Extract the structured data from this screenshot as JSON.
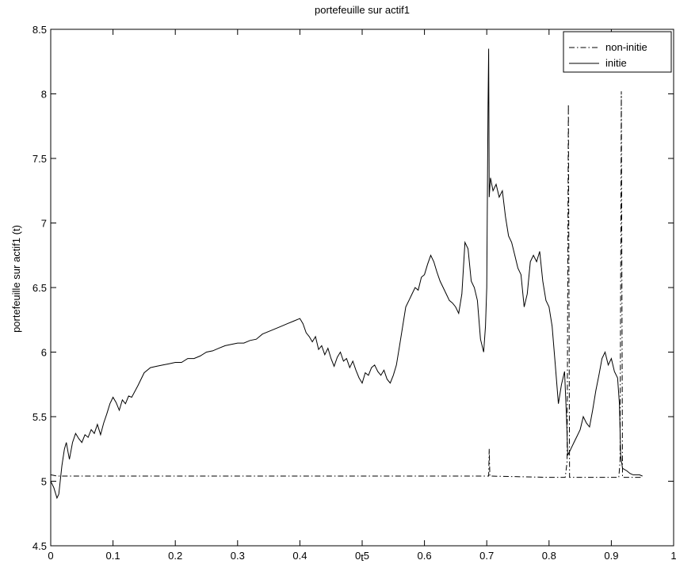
{
  "chart_data": {
    "type": "line",
    "title": "portefeuille sur actif1",
    "xlabel": "t",
    "ylabel": "portefeuille sur actif1 (t)",
    "xlim": [
      0,
      1
    ],
    "ylim": [
      4.5,
      8.5
    ],
    "x_ticks": [
      "0",
      "0.1",
      "0.2",
      "0.3",
      "0.4",
      "0.5",
      "0.6",
      "0.7",
      "0.8",
      "0.9",
      "1"
    ],
    "y_ticks": [
      "4.5",
      "5",
      "5.5",
      "6",
      "6.5",
      "7",
      "7.5",
      "8",
      "8.5"
    ],
    "grid": false,
    "legend_position": "top-right",
    "series": [
      {
        "name": "non-initie",
        "style": "dash-dot",
        "color": "#000000",
        "points": [
          [
            0.0,
            5.05
          ],
          [
            0.01,
            5.04
          ],
          [
            0.1,
            5.04
          ],
          [
            0.2,
            5.04
          ],
          [
            0.3,
            5.04
          ],
          [
            0.4,
            5.04
          ],
          [
            0.5,
            5.04
          ],
          [
            0.6,
            5.04
          ],
          [
            0.7,
            5.04
          ],
          [
            0.703,
            5.04
          ],
          [
            0.704,
            5.25
          ],
          [
            0.705,
            5.04
          ],
          [
            0.8,
            5.03
          ],
          [
            0.826,
            5.03
          ],
          [
            0.829,
            5.15
          ],
          [
            0.831,
            7.92
          ],
          [
            0.833,
            5.03
          ],
          [
            0.9,
            5.03
          ],
          [
            0.912,
            5.03
          ],
          [
            0.914,
            5.15
          ],
          [
            0.916,
            8.02
          ],
          [
            0.918,
            5.03
          ],
          [
            0.94,
            5.03
          ],
          [
            0.95,
            5.03
          ]
        ]
      },
      {
        "name": "initie",
        "style": "solid",
        "color": "#000000",
        "points": [
          [
            0.0,
            5.0
          ],
          [
            0.005,
            4.95
          ],
          [
            0.01,
            4.87
          ],
          [
            0.013,
            4.9
          ],
          [
            0.018,
            5.12
          ],
          [
            0.022,
            5.25
          ],
          [
            0.025,
            5.3
          ],
          [
            0.028,
            5.22
          ],
          [
            0.03,
            5.17
          ],
          [
            0.035,
            5.3
          ],
          [
            0.04,
            5.37
          ],
          [
            0.045,
            5.33
          ],
          [
            0.05,
            5.3
          ],
          [
            0.055,
            5.36
          ],
          [
            0.06,
            5.34
          ],
          [
            0.065,
            5.4
          ],
          [
            0.07,
            5.37
          ],
          [
            0.075,
            5.44
          ],
          [
            0.08,
            5.36
          ],
          [
            0.085,
            5.45
          ],
          [
            0.09,
            5.52
          ],
          [
            0.095,
            5.6
          ],
          [
            0.1,
            5.65
          ],
          [
            0.105,
            5.61
          ],
          [
            0.11,
            5.55
          ],
          [
            0.115,
            5.63
          ],
          [
            0.12,
            5.6
          ],
          [
            0.125,
            5.66
          ],
          [
            0.13,
            5.65
          ],
          [
            0.14,
            5.74
          ],
          [
            0.15,
            5.84
          ],
          [
            0.16,
            5.88
          ],
          [
            0.17,
            5.89
          ],
          [
            0.18,
            5.9
          ],
          [
            0.19,
            5.91
          ],
          [
            0.2,
            5.92
          ],
          [
            0.21,
            5.92
          ],
          [
            0.22,
            5.95
          ],
          [
            0.23,
            5.95
          ],
          [
            0.24,
            5.97
          ],
          [
            0.25,
            6.0
          ],
          [
            0.26,
            6.01
          ],
          [
            0.27,
            6.03
          ],
          [
            0.28,
            6.05
          ],
          [
            0.29,
            6.06
          ],
          [
            0.3,
            6.07
          ],
          [
            0.31,
            6.07
          ],
          [
            0.32,
            6.09
          ],
          [
            0.33,
            6.1
          ],
          [
            0.34,
            6.14
          ],
          [
            0.35,
            6.16
          ],
          [
            0.36,
            6.18
          ],
          [
            0.37,
            6.2
          ],
          [
            0.38,
            6.22
          ],
          [
            0.39,
            6.24
          ],
          [
            0.4,
            6.26
          ],
          [
            0.405,
            6.22
          ],
          [
            0.41,
            6.15
          ],
          [
            0.415,
            6.12
          ],
          [
            0.42,
            6.08
          ],
          [
            0.425,
            6.12
          ],
          [
            0.43,
            6.02
          ],
          [
            0.435,
            6.05
          ],
          [
            0.44,
            5.98
          ],
          [
            0.445,
            6.03
          ],
          [
            0.45,
            5.95
          ],
          [
            0.455,
            5.89
          ],
          [
            0.46,
            5.96
          ],
          [
            0.465,
            6.0
          ],
          [
            0.47,
            5.93
          ],
          [
            0.475,
            5.95
          ],
          [
            0.48,
            5.88
          ],
          [
            0.485,
            5.93
          ],
          [
            0.49,
            5.86
          ],
          [
            0.495,
            5.8
          ],
          [
            0.5,
            5.76
          ],
          [
            0.505,
            5.84
          ],
          [
            0.51,
            5.82
          ],
          [
            0.515,
            5.88
          ],
          [
            0.52,
            5.9
          ],
          [
            0.525,
            5.85
          ],
          [
            0.53,
            5.82
          ],
          [
            0.535,
            5.86
          ],
          [
            0.54,
            5.79
          ],
          [
            0.545,
            5.76
          ],
          [
            0.55,
            5.82
          ],
          [
            0.555,
            5.9
          ],
          [
            0.56,
            6.05
          ],
          [
            0.565,
            6.2
          ],
          [
            0.57,
            6.35
          ],
          [
            0.575,
            6.4
          ],
          [
            0.58,
            6.45
          ],
          [
            0.585,
            6.5
          ],
          [
            0.59,
            6.48
          ],
          [
            0.595,
            6.58
          ],
          [
            0.6,
            6.6
          ],
          [
            0.605,
            6.68
          ],
          [
            0.61,
            6.75
          ],
          [
            0.615,
            6.7
          ],
          [
            0.62,
            6.62
          ],
          [
            0.625,
            6.55
          ],
          [
            0.63,
            6.5
          ],
          [
            0.635,
            6.45
          ],
          [
            0.64,
            6.4
          ],
          [
            0.645,
            6.38
          ],
          [
            0.65,
            6.35
          ],
          [
            0.655,
            6.3
          ],
          [
            0.66,
            6.45
          ],
          [
            0.665,
            6.85
          ],
          [
            0.67,
            6.8
          ],
          [
            0.675,
            6.55
          ],
          [
            0.68,
            6.5
          ],
          [
            0.685,
            6.4
          ],
          [
            0.69,
            6.1
          ],
          [
            0.695,
            6.0
          ],
          [
            0.698,
            6.2
          ],
          [
            0.7,
            6.5
          ],
          [
            0.702,
            7.9
          ],
          [
            0.703,
            8.35
          ],
          [
            0.704,
            7.2
          ],
          [
            0.706,
            7.35
          ],
          [
            0.71,
            7.25
          ],
          [
            0.715,
            7.3
          ],
          [
            0.72,
            7.2
          ],
          [
            0.725,
            7.25
          ],
          [
            0.73,
            7.05
          ],
          [
            0.735,
            6.9
          ],
          [
            0.74,
            6.85
          ],
          [
            0.745,
            6.75
          ],
          [
            0.75,
            6.65
          ],
          [
            0.755,
            6.6
          ],
          [
            0.76,
            6.35
          ],
          [
            0.765,
            6.45
          ],
          [
            0.77,
            6.7
          ],
          [
            0.775,
            6.75
          ],
          [
            0.78,
            6.7
          ],
          [
            0.785,
            6.78
          ],
          [
            0.79,
            6.55
          ],
          [
            0.795,
            6.4
          ],
          [
            0.8,
            6.35
          ],
          [
            0.805,
            6.2
          ],
          [
            0.81,
            5.9
          ],
          [
            0.815,
            5.6
          ],
          [
            0.82,
            5.75
          ],
          [
            0.825,
            5.85
          ],
          [
            0.828,
            5.5
          ],
          [
            0.83,
            5.2
          ],
          [
            0.835,
            5.25
          ],
          [
            0.84,
            5.3
          ],
          [
            0.845,
            5.35
          ],
          [
            0.85,
            5.4
          ],
          [
            0.855,
            5.5
          ],
          [
            0.86,
            5.45
          ],
          [
            0.865,
            5.42
          ],
          [
            0.87,
            5.55
          ],
          [
            0.875,
            5.7
          ],
          [
            0.88,
            5.82
          ],
          [
            0.885,
            5.95
          ],
          [
            0.89,
            6.0
          ],
          [
            0.895,
            5.9
          ],
          [
            0.9,
            5.95
          ],
          [
            0.905,
            5.85
          ],
          [
            0.91,
            5.8
          ],
          [
            0.913,
            5.6
          ],
          [
            0.915,
            5.2
          ],
          [
            0.918,
            5.1
          ],
          [
            0.925,
            5.08
          ],
          [
            0.93,
            5.06
          ],
          [
            0.935,
            5.05
          ],
          [
            0.94,
            5.05
          ],
          [
            0.945,
            5.05
          ],
          [
            0.95,
            5.04
          ]
        ]
      }
    ]
  }
}
